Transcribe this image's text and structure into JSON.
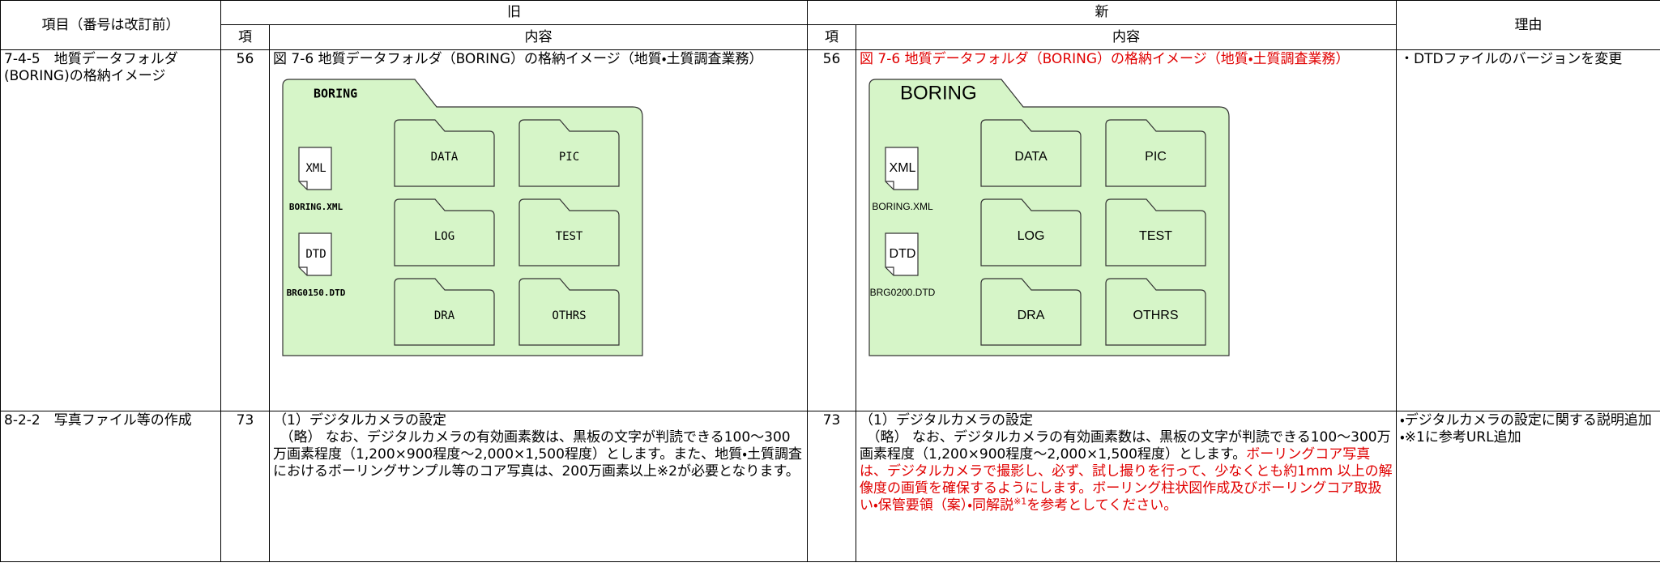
{
  "table": {
    "header": {
      "item": "項目（番号は改訂前）",
      "old": "旧",
      "new": "新",
      "reason": "理由",
      "old_no": "項",
      "old_content": "内容",
      "new_no": "項",
      "new_content": "内容"
    },
    "rows": [
      {
        "item": "7-4-5　地質データフォルダ(BORING)の格納イメージ",
        "old_no": "56",
        "old_content": "図 7-6 地質データフォルダ（BORING）の格納イメージ（地質・土質調査業務）",
        "old_figure": {
          "root": "BORING",
          "folders": [
            "DATA",
            "PIC",
            "LOG",
            "TEST",
            "DRA",
            "OTHRS"
          ],
          "files": [
            {
              "icon": "XML",
              "name": "BORING.XML"
            },
            {
              "icon": "DTD",
              "name": "BRG0150.DTD"
            }
          ]
        },
        "new_no": "56",
        "new_content": "図 7-6 地質データフォルダ（BORING）の格納イメージ（地質・土質調査業務）",
        "new_figure": {
          "root": "BORING",
          "folders": [
            "DATA",
            "PIC",
            "LOG",
            "TEST",
            "DRA",
            "OTHRS"
          ],
          "files": [
            {
              "icon": "XML",
              "name": "BORING.XML"
            },
            {
              "icon": "DTD",
              "name": "BRG0200.DTD"
            }
          ]
        },
        "reason": [
          "・DTDファイルのバージョンを変更"
        ]
      },
      {
        "item": "8-2-2　写真ファイル等の作成",
        "old_no": "73",
        "old_content": [
          "（1）デジタルカメラの設定",
          "　（略） なお、デジタルカメラの有効画素数は、黒板の文字が判読できる100～300万画素程度（1,200×900程度～2,000×1,500程度）とします。また、地質・土質調査におけるボーリングサンプル等のコア写真は、200万画素以上※2が必要となります。"
        ],
        "new_no": "73",
        "new_content": {
          "heading": "（1）デジタルカメラの設定",
          "text": "　（略） なお、デジタルカメラの有効画素数は、黒板の文字が判読できる100～300万画素程度（1,200×900程度～2,000×1,500程度）とします。",
          "added": "ボーリングコア写真は、デジタルカメラで撮影し、必ず、試し撮りを行って、少なくとも約1mm 以上の解像度の画質を確保するようにします。ボーリング柱状図作成及びボーリングコア取扱い・保管要領（案）・同解説",
          "note": "※1",
          "added_end": "を参考としてください。"
        },
        "reason": [
          "・デジタルカメラの設定に関する説明追加",
          "・※1に参考URL追加"
        ]
      }
    ]
  }
}
